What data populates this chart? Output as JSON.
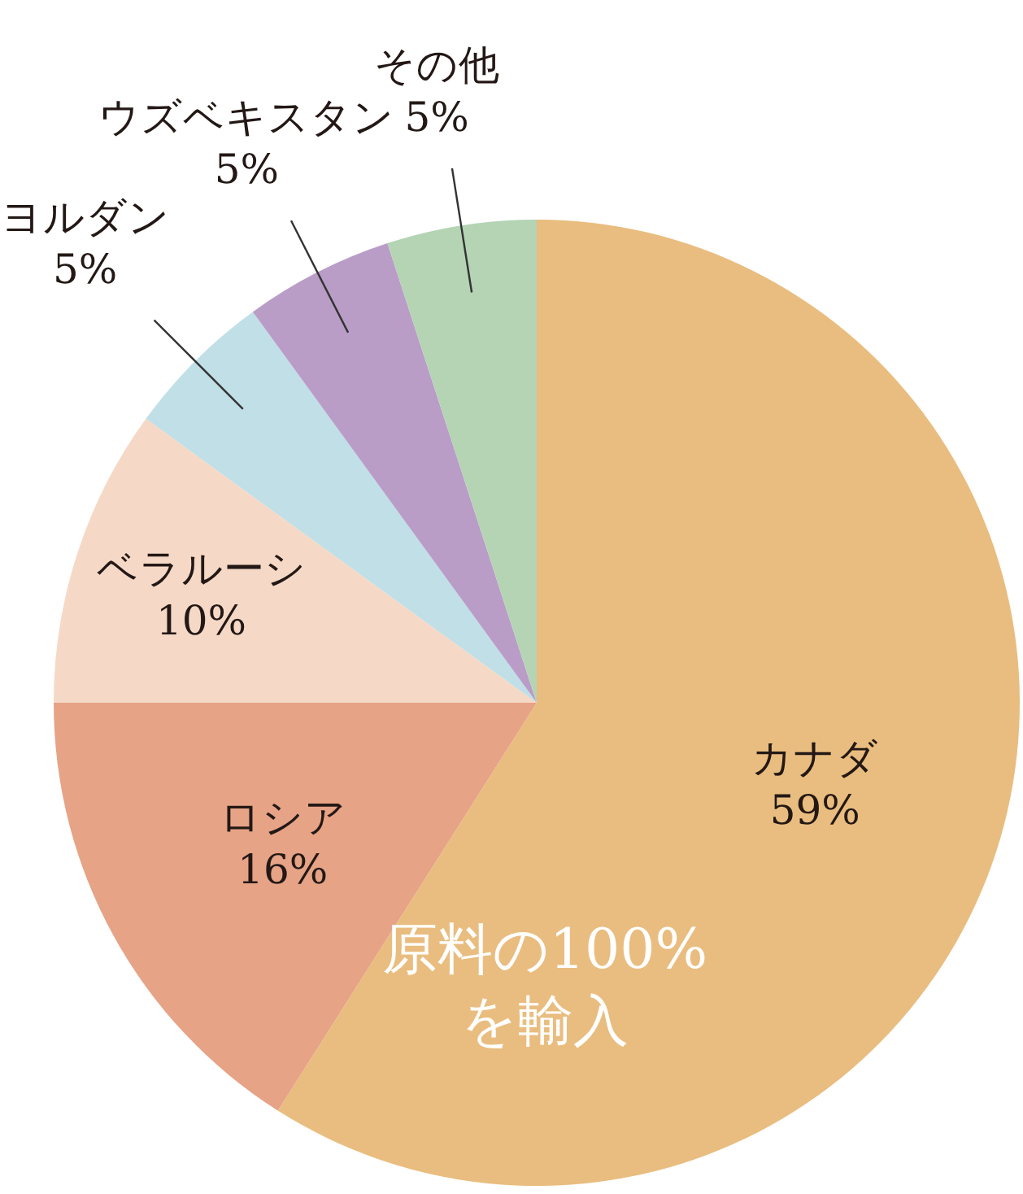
{
  "chart_data": {
    "type": "pie",
    "categories": [
      "カナダ",
      "ロシア",
      "ベラルーシ",
      "ヨルダン",
      "ウズベキスタン",
      "その他"
    ],
    "values": [
      59,
      16,
      10,
      5,
      5,
      5
    ],
    "colors": [
      "#e9bd7f",
      "#e6a386",
      "#f5d9c6",
      "#c0dfe6",
      "#b99dc7",
      "#b4d4b4"
    ],
    "value_labels": [
      "59%",
      "16%",
      "10%",
      "5%",
      "5%",
      "5%"
    ],
    "annotations": [
      "原料の100%を輸入"
    ]
  }
}
